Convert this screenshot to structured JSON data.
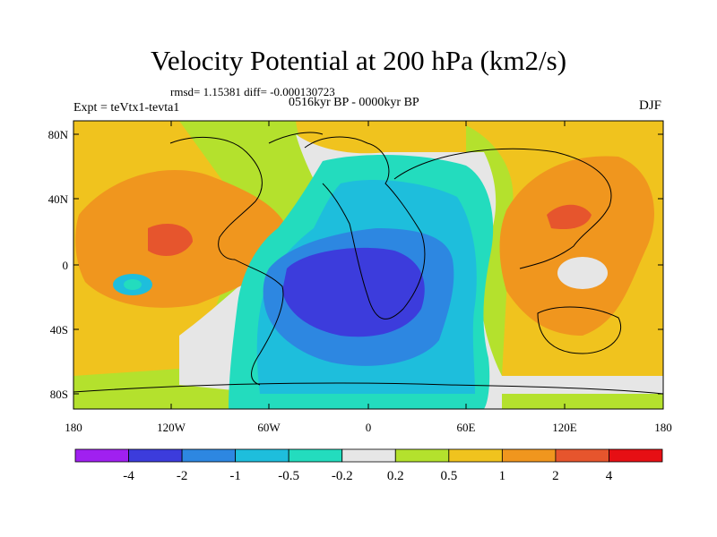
{
  "title": "Velocity Potential at 200 hPa (km2/s)",
  "stats_line": "rmsd= 1.15381 diff= -0.000130723",
  "period_label": "0516kyr BP - 0000kyr BP",
  "expt_label": "Expt = teVtx1-tevta1",
  "season_label": "DJF",
  "y_ticks": [
    "80N",
    "40N",
    "0",
    "40S",
    "80S"
  ],
  "x_ticks": [
    "180",
    "120W",
    "60W",
    "0",
    "60E",
    "120E",
    "180"
  ],
  "colorbar": {
    "colors": [
      "#a020f0",
      "#3c3cdc",
      "#2d87e1",
      "#1ebedc",
      "#23dcbe",
      "#e6e6e6",
      "#b4e12d",
      "#f0c31e",
      "#f0961e",
      "#e6552d",
      "#e60f14"
    ],
    "labels": [
      "-4",
      "-2",
      "-1",
      "-0.5",
      "-0.2",
      "0.2",
      "0.5",
      "1",
      "2",
      "4"
    ]
  }
}
